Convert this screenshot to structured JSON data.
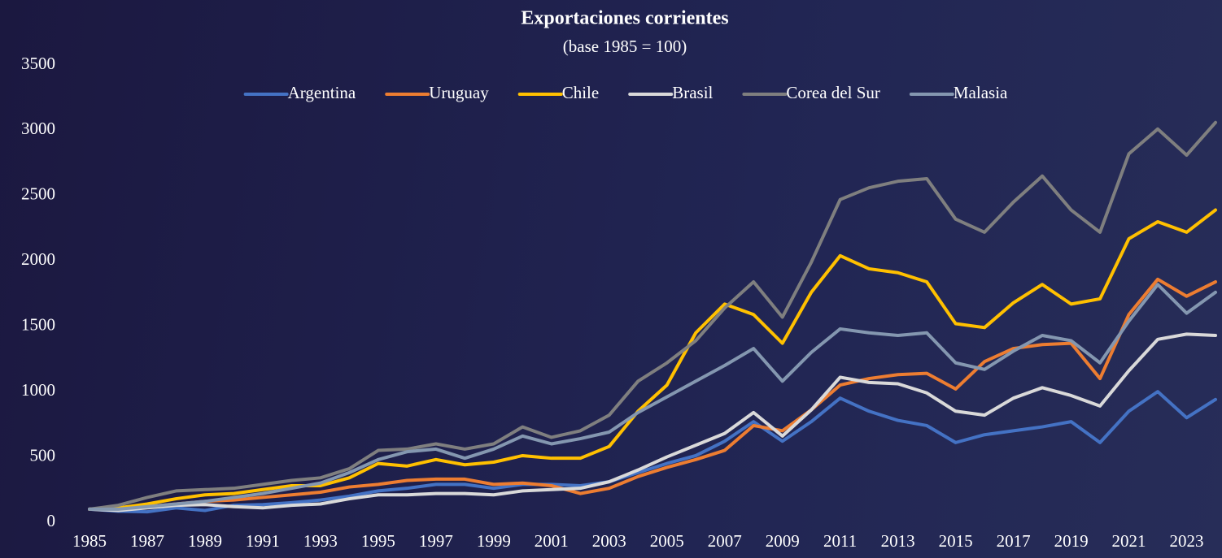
{
  "chart_data": {
    "type": "line",
    "title": "Exportaciones corrientes",
    "subtitle": "(base 1985 = 100)",
    "x": [
      1985,
      1986,
      1987,
      1988,
      1989,
      1990,
      1991,
      1992,
      1993,
      1994,
      1995,
      1996,
      1997,
      1998,
      1999,
      2000,
      2001,
      2002,
      2003,
      2004,
      2005,
      2006,
      2007,
      2008,
      2009,
      2010,
      2011,
      2012,
      2013,
      2014,
      2015,
      2016,
      2017,
      2018,
      2019,
      2020,
      2021,
      2022,
      2023,
      2024
    ],
    "xlim": [
      1985,
      2024
    ],
    "xticks": [
      1985,
      1987,
      1989,
      1991,
      1993,
      1995,
      1997,
      1999,
      2001,
      2003,
      2005,
      2007,
      2009,
      2011,
      2013,
      2015,
      2017,
      2019,
      2021,
      2023
    ],
    "ylim": [
      0,
      3500
    ],
    "yticks": [
      0,
      500,
      1000,
      1500,
      2000,
      2500,
      3000,
      3500
    ],
    "grid": false,
    "legend": "top",
    "series": [
      {
        "name": "Argentina",
        "color": "#4472c4",
        "values": [
          100,
          85,
          80,
          110,
          90,
          130,
          135,
          150,
          170,
          200,
          240,
          260,
          290,
          290,
          260,
          290,
          290,
          280,
          310,
          380,
          450,
          510,
          620,
          770,
          620,
          770,
          950,
          850,
          780,
          740,
          610,
          670,
          700,
          730,
          770,
          610,
          850,
          1000,
          800,
          940
        ]
      },
      {
        "name": "Uruguay",
        "color": "#ed7d31",
        "values": [
          100,
          95,
          120,
          140,
          160,
          170,
          190,
          210,
          230,
          270,
          290,
          320,
          330,
          330,
          290,
          300,
          280,
          220,
          260,
          350,
          420,
          480,
          550,
          740,
          700,
          860,
          1050,
          1100,
          1130,
          1140,
          1020,
          1230,
          1330,
          1360,
          1370,
          1100,
          1590,
          1860,
          1730,
          1840
        ]
      },
      {
        "name": "Chile",
        "color": "#ffc000",
        "values": [
          100,
          110,
          140,
          180,
          210,
          220,
          250,
          280,
          280,
          340,
          450,
          430,
          480,
          440,
          460,
          510,
          490,
          490,
          580,
          850,
          1050,
          1450,
          1670,
          1590,
          1370,
          1760,
          2040,
          1940,
          1910,
          1840,
          1520,
          1490,
          1680,
          1820,
          1670,
          1710,
          2170,
          2300,
          2220,
          2390
        ]
      },
      {
        "name": "Brasil",
        "color": "#d9d9d9",
        "values": [
          100,
          90,
          110,
          130,
          135,
          120,
          110,
          130,
          140,
          180,
          210,
          210,
          220,
          220,
          210,
          240,
          250,
          260,
          310,
          400,
          500,
          590,
          680,
          840,
          660,
          860,
          1110,
          1070,
          1060,
          990,
          850,
          820,
          950,
          1030,
          970,
          890,
          1160,
          1400,
          1440,
          1430
        ]
      },
      {
        "name": "Corea del Sur",
        "color": "#7f7f7f",
        "values": [
          100,
          130,
          190,
          240,
          250,
          260,
          290,
          320,
          340,
          410,
          550,
          560,
          600,
          560,
          600,
          730,
          650,
          700,
          820,
          1080,
          1220,
          1390,
          1640,
          1840,
          1570,
          1990,
          2470,
          2560,
          2610,
          2630,
          2320,
          2220,
          2450,
          2650,
          2390,
          2220,
          2820,
          3010,
          2810,
          3060
        ]
      },
      {
        "name": "Malasia",
        "color": "#8497b0",
        "values": [
          100,
          100,
          120,
          140,
          160,
          190,
          220,
          260,
          300,
          380,
          480,
          540,
          560,
          490,
          560,
          660,
          600,
          640,
          690,
          840,
          960,
          1080,
          1200,
          1330,
          1080,
          1300,
          1480,
          1450,
          1430,
          1450,
          1220,
          1170,
          1310,
          1430,
          1390,
          1220,
          1540,
          1820,
          1600,
          1760
        ]
      }
    ]
  }
}
